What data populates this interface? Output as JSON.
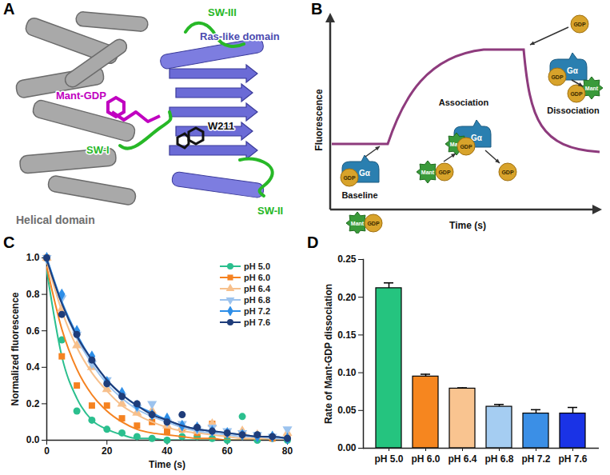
{
  "panel_letters": {
    "a": "A",
    "b": "B",
    "c": "C",
    "d": "D"
  },
  "figure": {
    "panel_a": {
      "helical_domain": "Helical domain",
      "ras_like_domain": "Ras-like domain",
      "ligand": "Mant-GDP",
      "switch_1": "SW-I",
      "switch_2": "SW-II",
      "switch_3": "SW-III",
      "residue": "W211"
    },
    "panel_b": {
      "y_label": "Fluorescence",
      "x_label": "Time (s)",
      "stages": [
        "Baseline",
        "Association",
        "Dissociation"
      ],
      "protein": "Gα",
      "nucleotide": "GDP",
      "fluorophore": "Mant"
    }
  },
  "chart_data": [
    {
      "type": "scatter",
      "x_label": "Time (s)",
      "y_label": "Normalized fluorescence",
      "x": [
        0,
        5,
        10,
        15,
        20,
        25,
        30,
        35,
        40,
        45,
        50,
        55,
        60,
        65,
        70,
        75,
        80
      ],
      "xlim": [
        0,
        80
      ],
      "xticks": [
        0,
        20,
        40,
        60,
        80
      ],
      "ylim": [
        0,
        1
      ],
      "yticks": [
        {
          "value": 0,
          "label": "0.0"
        },
        0.2,
        0.4,
        0.6,
        0.8,
        {
          "value": 1,
          "label": "1.0"
        }
      ],
      "legend": "top-right",
      "series": [
        {
          "name": "pH 5.0",
          "color": "#2bbf8e",
          "marker": "circle",
          "values": [
            1.0,
            0.55,
            0.16,
            0.11,
            0.06,
            0.04,
            0.02,
            0.01,
            0.0,
            0.02,
            0.02,
            0.01,
            0.0,
            0.13,
            0.0,
            0.01,
            0.0
          ],
          "fit": [
            0.93,
            0.46,
            0.23,
            0.11,
            0.06,
            0.03,
            0.01,
            0.01,
            0,
            0,
            0,
            0,
            0,
            0,
            0,
            0,
            0
          ]
        },
        {
          "name": "pH 6.0",
          "color": "#f58220",
          "marker": "square",
          "values": [
            1.0,
            0.46,
            0.3,
            0.19,
            0.19,
            0.12,
            0.08,
            0.1,
            0.05,
            0.06,
            0.04,
            0.09,
            0.03,
            0.03,
            0.02,
            0.01,
            0.02
          ],
          "fit": [
            0.95,
            0.61,
            0.39,
            0.25,
            0.16,
            0.1,
            0.06,
            0.04,
            0.03,
            0.02,
            0.01,
            0.01,
            0,
            0,
            0,
            0,
            0
          ]
        },
        {
          "name": "pH 6.4",
          "color": "#f7c08c",
          "marker": "triangle",
          "values": [
            1.0,
            0.72,
            0.52,
            0.4,
            0.28,
            0.2,
            0.15,
            0.16,
            0.08,
            0.07,
            0.05,
            0.09,
            0.04,
            0.05,
            0.03,
            0.02,
            0.04
          ],
          "fit": [
            0.98,
            0.71,
            0.51,
            0.37,
            0.27,
            0.19,
            0.14,
            0.1,
            0.07,
            0.05,
            0.04,
            0.03,
            0.02,
            0.01,
            0.01,
            0.01,
            0.0
          ]
        },
        {
          "name": "pH 6.8",
          "color": "#9cc3ee",
          "marker": "triangle-down",
          "values": [
            1.0,
            0.78,
            0.58,
            0.42,
            0.33,
            0.24,
            0.18,
            0.2,
            0.1,
            0.09,
            0.06,
            0.07,
            0.05,
            0.04,
            0.03,
            0.02,
            0.06
          ],
          "fit": [
            1.0,
            0.75,
            0.56,
            0.42,
            0.31,
            0.23,
            0.17,
            0.13,
            0.1,
            0.07,
            0.05,
            0.04,
            0.03,
            0.02,
            0.02,
            0.01,
            0.01
          ]
        },
        {
          "name": "pH 7.2",
          "color": "#2d8ee8",
          "marker": "diamond",
          "values": [
            1.0,
            0.8,
            0.6,
            0.46,
            0.32,
            0.26,
            0.19,
            0.14,
            0.12,
            0.08,
            0.07,
            0.05,
            0.04,
            0.03,
            0.02,
            0.02,
            0.01
          ],
          "fit": [
            1.0,
            0.76,
            0.58,
            0.44,
            0.33,
            0.25,
            0.19,
            0.15,
            0.11,
            0.08,
            0.06,
            0.05,
            0.04,
            0.03,
            0.02,
            0.02,
            0.01
          ]
        },
        {
          "name": "pH 7.6",
          "color": "#1f3d7a",
          "marker": "circle",
          "values": [
            1.0,
            0.69,
            0.58,
            0.44,
            0.31,
            0.24,
            0.2,
            0.14,
            0.1,
            0.14,
            0.07,
            0.05,
            0.04,
            0.03,
            0.03,
            0.02,
            0.01
          ],
          "fit": [
            0.99,
            0.75,
            0.57,
            0.44,
            0.33,
            0.25,
            0.19,
            0.14,
            0.11,
            0.08,
            0.06,
            0.05,
            0.04,
            0.03,
            0.02,
            0.02,
            0.01
          ]
        }
      ]
    },
    {
      "type": "bar",
      "y_label": "Rate of Mant-GDP dissociation",
      "categories": [
        "pH 5.0",
        "pH 6.0",
        "pH 6.4",
        "pH 6.8",
        "pH 7.2",
        "pH 7.6"
      ],
      "values": [
        0.212,
        0.095,
        0.079,
        0.055,
        0.046,
        0.046
      ],
      "errors": [
        0.007,
        0.003,
        0.001,
        0.003,
        0.005,
        0.008
      ],
      "colors": [
        "#25c47f",
        "#f6861f",
        "#f9c490",
        "#a5cdf2",
        "#3b8fe6",
        "#1a33e6"
      ],
      "ylim": [
        0,
        0.25
      ],
      "yticks": [
        {
          "value": 0,
          "label": "0.00"
        },
        0.05,
        {
          "value": 0.1,
          "label": "0.10"
        },
        0.15,
        {
          "value": 0.2,
          "label": "0.20"
        },
        0.25
      ]
    }
  ]
}
